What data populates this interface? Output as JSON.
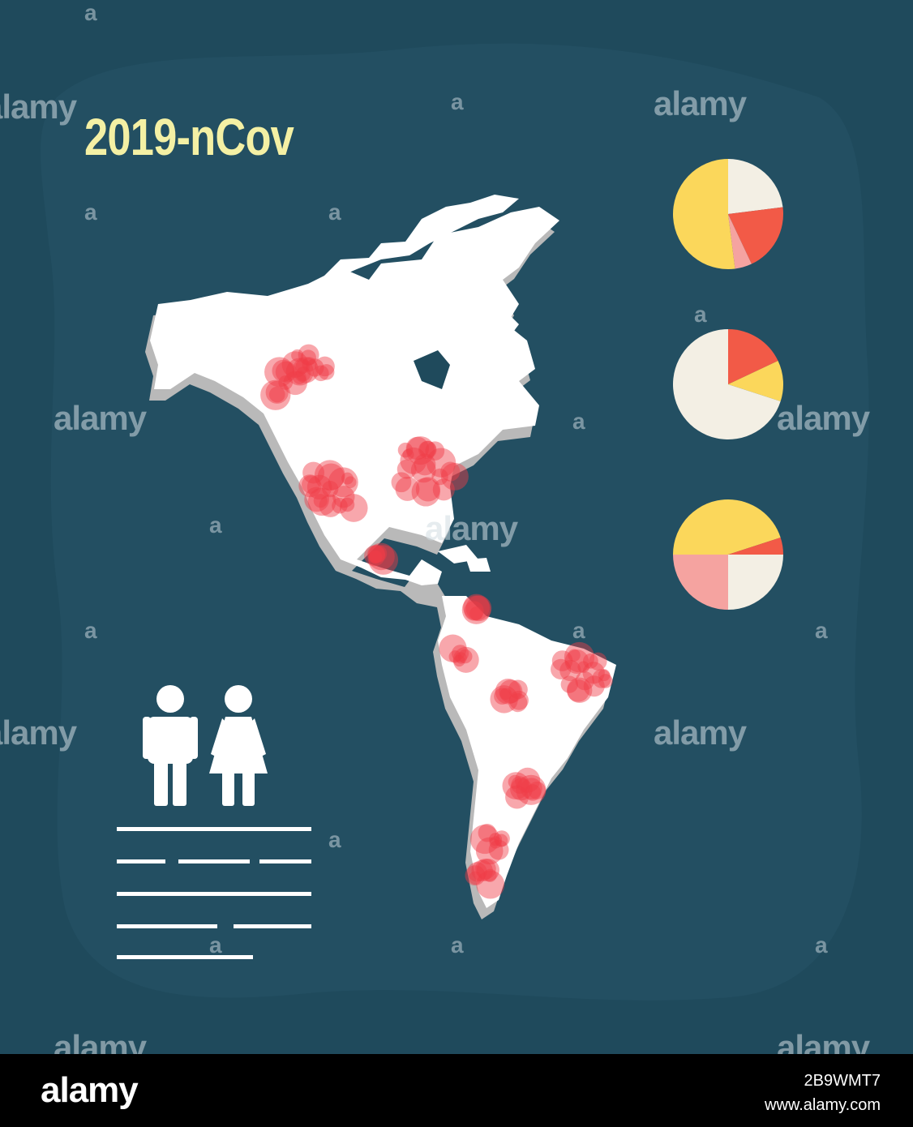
{
  "poster": {
    "title": "2019-nCov",
    "colors": {
      "background": "#1f4a5c",
      "blob": "#234f62",
      "title": "#f4f0a4",
      "land": "#ffffff",
      "land_side": "#bdbdbd",
      "hotspot": "#f03c46",
      "pie_cream": "#f3efe4",
      "pie_yellow": "#fbd75b",
      "pie_red": "#f25a47",
      "pie_pink": "#f5a3a0"
    },
    "pies": [
      {
        "name": "pie-1",
        "slices": [
          {
            "color": "pie_cream",
            "fraction": 0.23
          },
          {
            "color": "pie_red",
            "fraction": 0.2
          },
          {
            "color": "pie_pink",
            "fraction": 0.05
          },
          {
            "color": "pie_yellow",
            "fraction": 0.52
          }
        ]
      },
      {
        "name": "pie-2",
        "slices": [
          {
            "color": "pie_red",
            "fraction": 0.18
          },
          {
            "color": "pie_yellow",
            "fraction": 0.12
          },
          {
            "color": "pie_cream",
            "fraction": 0.7
          }
        ]
      },
      {
        "name": "pie-3",
        "slices": [
          {
            "color": "pie_yellow",
            "fraction": 0.2
          },
          {
            "color": "pie_red",
            "fraction": 0.05
          },
          {
            "color": "pie_cream",
            "fraction": 0.25
          },
          {
            "color": "pie_pink",
            "fraction": 0.25
          },
          {
            "color": "pie_yellow",
            "fraction": 0.25
          }
        ]
      }
    ],
    "icons": [
      "male-person-icon",
      "female-person-icon"
    ]
  },
  "watermarks": {
    "big": "alamy",
    "small": "a"
  },
  "footer": {
    "logo": "alamy",
    "image_id": "2B9WMT7",
    "url": "www.alamy.com"
  }
}
